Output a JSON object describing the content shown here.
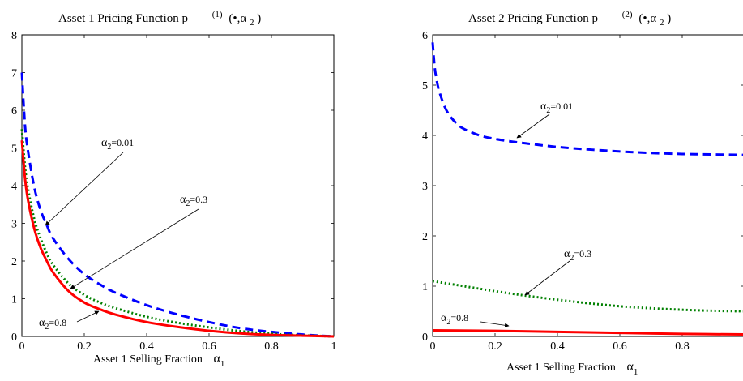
{
  "chart_data": [
    {
      "type": "line",
      "title": {
        "main": "Asset 1 Pricing Function  p",
        "sup": "(1)",
        "tail": "(•,α",
        "sub": "2",
        "close": ")"
      },
      "xlabel": {
        "main": "Asset 1 Selling Fraction",
        "greek": "α",
        "sub": "1"
      },
      "ylabel": "",
      "xlim": [
        0,
        1
      ],
      "ylim": [
        0,
        8
      ],
      "xticks": [
        "0",
        "0.2",
        "0.4",
        "0.6",
        "0.8",
        "1"
      ],
      "yticks": [
        "0",
        "1",
        "2",
        "3",
        "4",
        "5",
        "6",
        "7",
        "8"
      ],
      "grid": false,
      "series": [
        {
          "name": "α2=0.01",
          "color": "#0000ff",
          "style": "dashed",
          "x": [
            0,
            0.01,
            0.02,
            0.04,
            0.06,
            0.08,
            0.1,
            0.15,
            0.2,
            0.25,
            0.3,
            0.4,
            0.5,
            0.6,
            0.7,
            0.8,
            0.9,
            1.0
          ],
          "y": [
            7.0,
            5.6,
            4.9,
            3.95,
            3.35,
            2.95,
            2.6,
            2.05,
            1.65,
            1.38,
            1.16,
            0.83,
            0.58,
            0.38,
            0.22,
            0.12,
            0.05,
            0.0
          ]
        },
        {
          "name": "α2=0.3",
          "color": "#008000",
          "style": "dotted",
          "x": [
            0,
            0.01,
            0.02,
            0.04,
            0.06,
            0.08,
            0.1,
            0.15,
            0.2,
            0.25,
            0.3,
            0.4,
            0.5,
            0.6,
            0.7,
            0.8,
            0.9,
            1.0
          ],
          "y": [
            5.5,
            4.5,
            3.9,
            3.1,
            2.6,
            2.2,
            1.9,
            1.4,
            1.1,
            0.9,
            0.75,
            0.52,
            0.36,
            0.24,
            0.14,
            0.07,
            0.03,
            0.0
          ]
        },
        {
          "name": "α2=0.8",
          "color": "#ff0000",
          "style": "solid",
          "x": [
            0,
            0.01,
            0.02,
            0.04,
            0.06,
            0.08,
            0.1,
            0.15,
            0.2,
            0.25,
            0.3,
            0.4,
            0.5,
            0.6,
            0.7,
            0.8,
            0.9,
            1.0
          ],
          "y": [
            5.2,
            4.2,
            3.6,
            2.85,
            2.35,
            2.0,
            1.7,
            1.2,
            0.9,
            0.72,
            0.58,
            0.38,
            0.25,
            0.15,
            0.08,
            0.04,
            0.02,
            0.0
          ]
        }
      ],
      "annotations": [
        {
          "greek": "α",
          "sub": "2",
          "text": "=0.01"
        },
        {
          "greek": "α",
          "sub": "2",
          "text": "=0.3"
        },
        {
          "greek": "α",
          "sub": "2",
          "text": "=0.8"
        }
      ]
    },
    {
      "type": "line",
      "title": {
        "main": "Asset 2 Pricing Function  p",
        "sup": "(2)",
        "tail": "(•,α",
        "sub": "2",
        "close": ")"
      },
      "xlabel": {
        "main": "Asset 1 Selling Fraction",
        "greek": "α",
        "sub": "1"
      },
      "ylabel": "",
      "xlim": [
        0,
        1
      ],
      "ylim": [
        0,
        6
      ],
      "xticks": [
        "0",
        "0.2",
        "0.4",
        "0.6",
        "0.8"
      ],
      "yticks": [
        "0",
        "1",
        "2",
        "3",
        "4",
        "5",
        "6"
      ],
      "grid": false,
      "series": [
        {
          "name": "α2=0.01",
          "color": "#0000ff",
          "style": "dashed",
          "x": [
            0,
            0.005,
            0.01,
            0.02,
            0.04,
            0.06,
            0.08,
            0.1,
            0.15,
            0.2,
            0.25,
            0.3,
            0.4,
            0.5,
            0.6,
            0.7,
            0.8,
            0.9,
            1.0
          ],
          "y": [
            5.85,
            5.45,
            5.2,
            4.9,
            4.55,
            4.35,
            4.22,
            4.13,
            4.0,
            3.93,
            3.88,
            3.84,
            3.77,
            3.72,
            3.68,
            3.65,
            3.63,
            3.62,
            3.61
          ]
        },
        {
          "name": "α2=0.3",
          "color": "#008000",
          "style": "dotted",
          "x": [
            0,
            0.1,
            0.2,
            0.3,
            0.4,
            0.5,
            0.6,
            0.7,
            0.8,
            0.9,
            1.0
          ],
          "y": [
            1.1,
            1.0,
            0.9,
            0.81,
            0.73,
            0.66,
            0.6,
            0.56,
            0.53,
            0.51,
            0.5
          ]
        },
        {
          "name": "α2=0.8",
          "color": "#ff0000",
          "style": "solid",
          "x": [
            0,
            0.2,
            0.4,
            0.6,
            0.8,
            1.0
          ],
          "y": [
            0.12,
            0.11,
            0.09,
            0.07,
            0.05,
            0.04
          ]
        }
      ],
      "annotations": [
        {
          "greek": "α",
          "sub": "2",
          "text": "=0.01"
        },
        {
          "greek": "α",
          "sub": "2",
          "text": "=0.3"
        },
        {
          "greek": "α",
          "sub": "2",
          "text": "=0.8"
        }
      ]
    }
  ]
}
